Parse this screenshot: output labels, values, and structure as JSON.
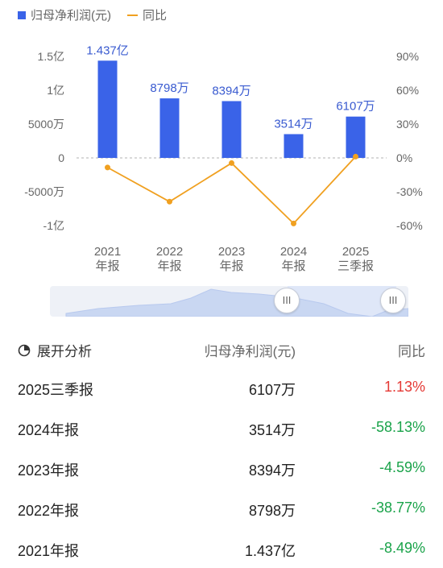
{
  "legend": {
    "bar_label": "归母净利润(元)",
    "line_label": "同比"
  },
  "colors": {
    "bar": "#3a63e8",
    "line": "#f0a020",
    "up": "#e53935",
    "down": "#1aa34a"
  },
  "chart_data": {
    "type": "bar+line",
    "categories": [
      [
        "2021",
        "年报"
      ],
      [
        "2022",
        "年报"
      ],
      [
        "2023",
        "年报"
      ],
      [
        "2024",
        "年报"
      ],
      [
        "2025",
        "三季报"
      ]
    ],
    "series": [
      {
        "name": "归母净利润(元)",
        "type": "bar",
        "values": [
          143700000,
          87980000,
          83940000,
          35140000,
          61070000
        ],
        "labels": [
          "1.437亿",
          "8798万",
          "8394万",
          "3514万",
          "6107万"
        ]
      },
      {
        "name": "同比",
        "type": "line",
        "values": [
          -8.49,
          -38.77,
          -4.59,
          -58.13,
          1.13
        ]
      }
    ],
    "y_left": {
      "ticks": [
        150000000,
        100000000,
        50000000,
        0,
        -50000000,
        -100000000
      ],
      "tick_labels": [
        "1.5亿",
        "1亿",
        "5000万",
        "0",
        "-5000万",
        "-1亿"
      ]
    },
    "y_right": {
      "ticks": [
        90,
        60,
        30,
        0,
        -30,
        -60
      ],
      "tick_labels": [
        "90%",
        "60%",
        "30%",
        "0%",
        "-30%",
        "-60%"
      ]
    }
  },
  "slider": {
    "handle_left": "III",
    "handle_right": "III"
  },
  "table": {
    "headers": {
      "col1": "展开分析",
      "col2": "归母净利润(元)",
      "col3": "同比"
    },
    "rows": [
      {
        "period": "2025三季报",
        "profit": "6107万",
        "yoy": "1.13%",
        "trend": "up"
      },
      {
        "period": "2024年报",
        "profit": "3514万",
        "yoy": "-58.13%",
        "trend": "down"
      },
      {
        "period": "2023年报",
        "profit": "8394万",
        "yoy": "-4.59%",
        "trend": "down"
      },
      {
        "period": "2022年报",
        "profit": "8798万",
        "yoy": "-38.77%",
        "trend": "down"
      },
      {
        "period": "2021年报",
        "profit": "1.437亿",
        "yoy": "-8.49%",
        "trend": "down"
      }
    ]
  }
}
